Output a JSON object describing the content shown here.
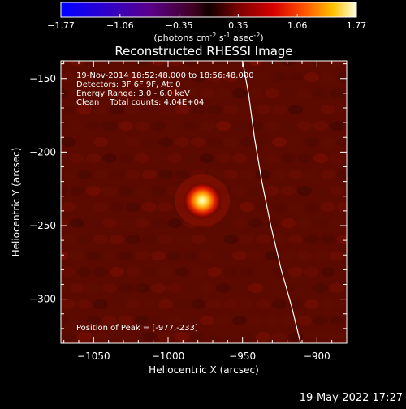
{
  "colorbar": {
    "ticks": [
      "-1.77",
      "-1.06",
      "-0.35",
      "0.35",
      "1.06",
      "1.77"
    ],
    "units_main": "(photons cm",
    "units_exp1": "-2",
    "units_mid": " s",
    "units_exp2": "-1",
    "units_tail": " asec",
    "units_exp3": "-2",
    "units_close": ")"
  },
  "annotations": {
    "time_range": "19-Nov-2014 18:52:48.000 to 18:56:48.000",
    "detectors": "Detectors: 3F 6F 9F, Att 0",
    "energy": "Energy Range: 3.0 - 6.0 keV",
    "clean": "Clean    Total counts: 4.04E+04",
    "peak": "Position of Peak = [-977,-233]"
  },
  "footer": {
    "timestamp": "19-May-2022 17:27"
  },
  "colors": {
    "axes": "#ffffff",
    "background": "#000000",
    "limb": "#ffffff"
  },
  "chart_data": {
    "type": "heatmap",
    "title": "Reconstructed RHESSI Image",
    "xlabel": "Heliocentric X (arcsec)",
    "ylabel": "Heliocentric Y (arcsec)",
    "xlim": [
      -1072,
      -880
    ],
    "ylim": [
      -330,
      -138
    ],
    "xticks": [
      -1050,
      -1000,
      -950,
      -900
    ],
    "yticks": [
      -150,
      -200,
      -250,
      -300
    ],
    "xtick_labels": [
      "−1050",
      "−1000",
      "−950",
      "−900"
    ],
    "ytick_labels": [
      "−150",
      "−200",
      "−250",
      "−300"
    ],
    "color_range": [
      -1.77,
      1.77
    ],
    "colormap": "rainbow-hot",
    "peak": {
      "x": -977,
      "y": -233,
      "value": 1.77
    },
    "limb_points": [
      [
        -950,
        -138
      ],
      [
        -946,
        -160
      ],
      [
        -942,
        -190
      ],
      [
        -937,
        -220
      ],
      [
        -931,
        -250
      ],
      [
        -924,
        -280
      ],
      [
        -917,
        -305
      ],
      [
        -911,
        -330
      ]
    ],
    "grid": false
  }
}
